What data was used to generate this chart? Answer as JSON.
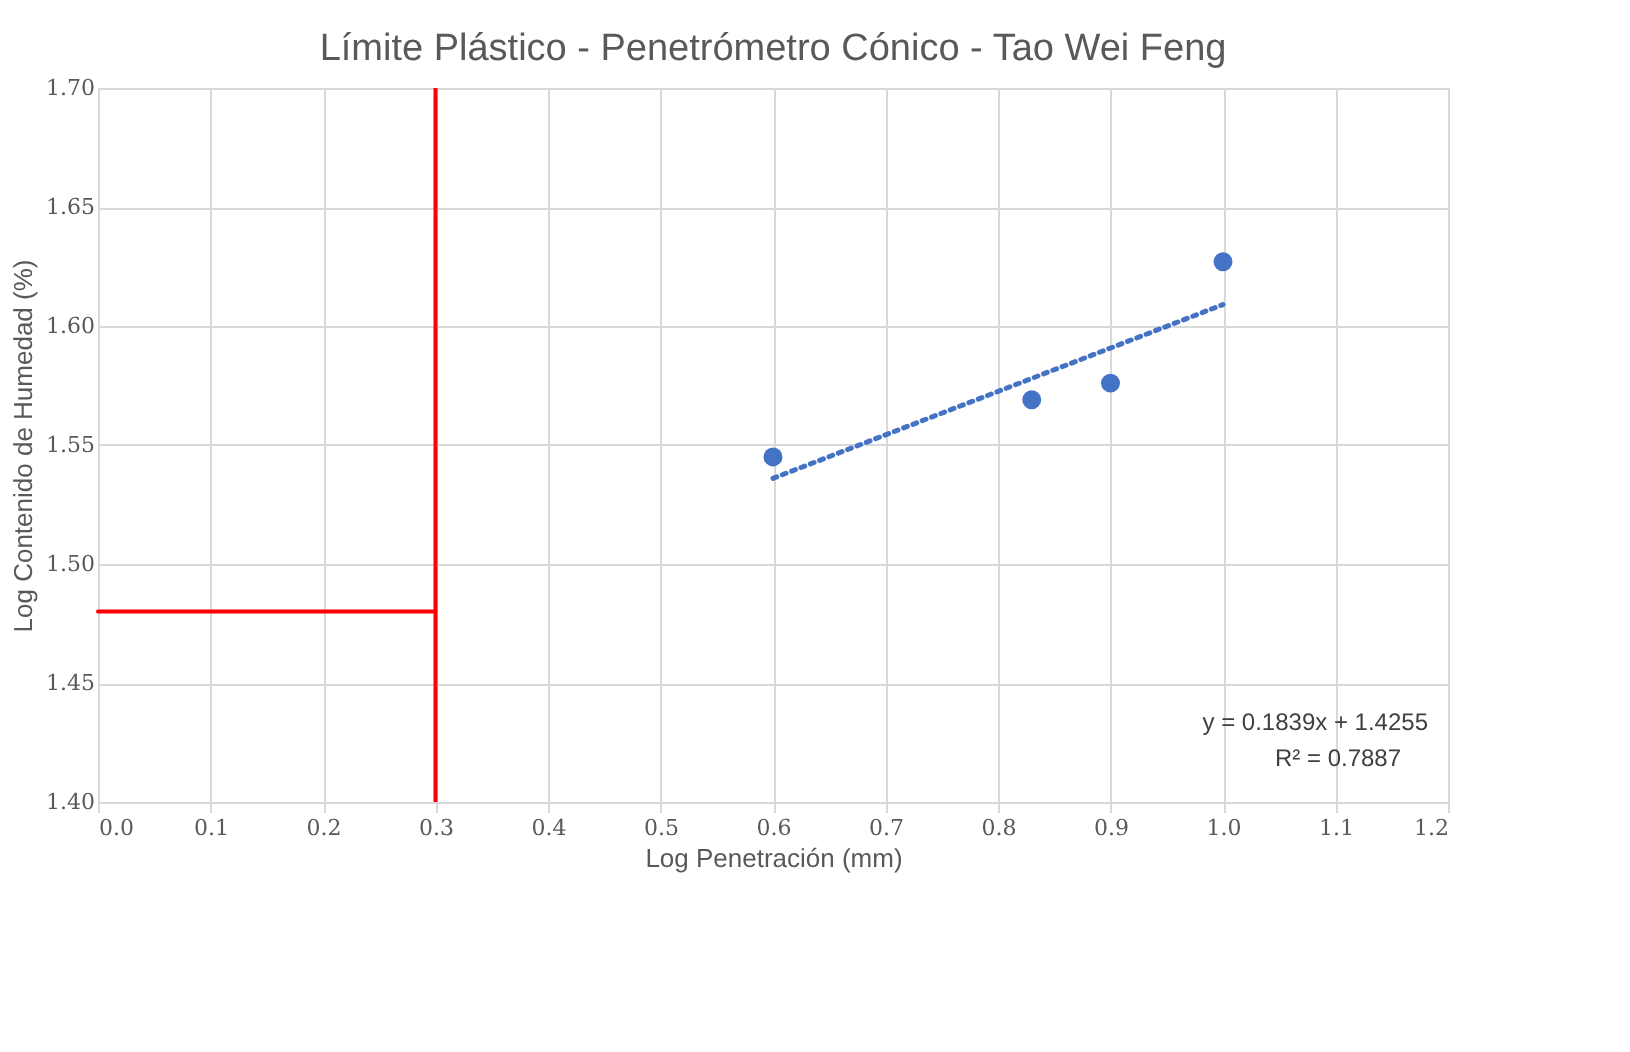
{
  "chart_data": {
    "type": "scatter",
    "title": "Límite Plástico - Penetrómetro Cónico - Tao Wei Feng",
    "xlabel": "Log Penetración (mm)",
    "ylabel": "Log Contenido de Humedad (%)",
    "xlim": [
      0.0,
      1.2
    ],
    "xticks": [
      {
        "value": 0,
        "label": "0.0"
      },
      0.1,
      0.2,
      0.3,
      0.4,
      0.5,
      0.6,
      0.7,
      0.8,
      0.9,
      {
        "value": 1,
        "label": "1.0"
      },
      1.1,
      1.2
    ],
    "ylim": [
      1.4,
      1.7
    ],
    "yticks": [
      {
        "value": 1.4,
        "label": "1.40"
      },
      1.45,
      {
        "value": 1.5,
        "label": "1.50"
      },
      1.55,
      {
        "value": 1.6,
        "label": "1.60"
      },
      1.65,
      {
        "value": 1.7,
        "label": "1.70"
      }
    ],
    "grid": true,
    "series": [
      {
        "color": "#4472c4",
        "marker": "circle",
        "x": [
          0.6,
          0.83,
          0.9,
          1.0
        ],
        "values": [
          1.545,
          1.569,
          1.576,
          1.627
        ]
      },
      {
        "type": "line",
        "color": "#4472c4",
        "line_style": "dotted",
        "marker": "none",
        "x": [
          0.6,
          1.0
        ],
        "values": [
          1.536,
          1.609
        ]
      },
      {
        "type": "line",
        "color": "#ff0000",
        "line_style": "solid",
        "marker": "none",
        "x": [
          0.0,
          0.3
        ],
        "values": [
          1.48,
          1.48
        ]
      }
    ],
    "ref_lines": [
      {
        "axis": "x",
        "value": 0.3,
        "color": "#ff0000"
      }
    ],
    "annotations": [
      "y = 0.1839x + 1.4255",
      "R² = 0.7887"
    ]
  }
}
